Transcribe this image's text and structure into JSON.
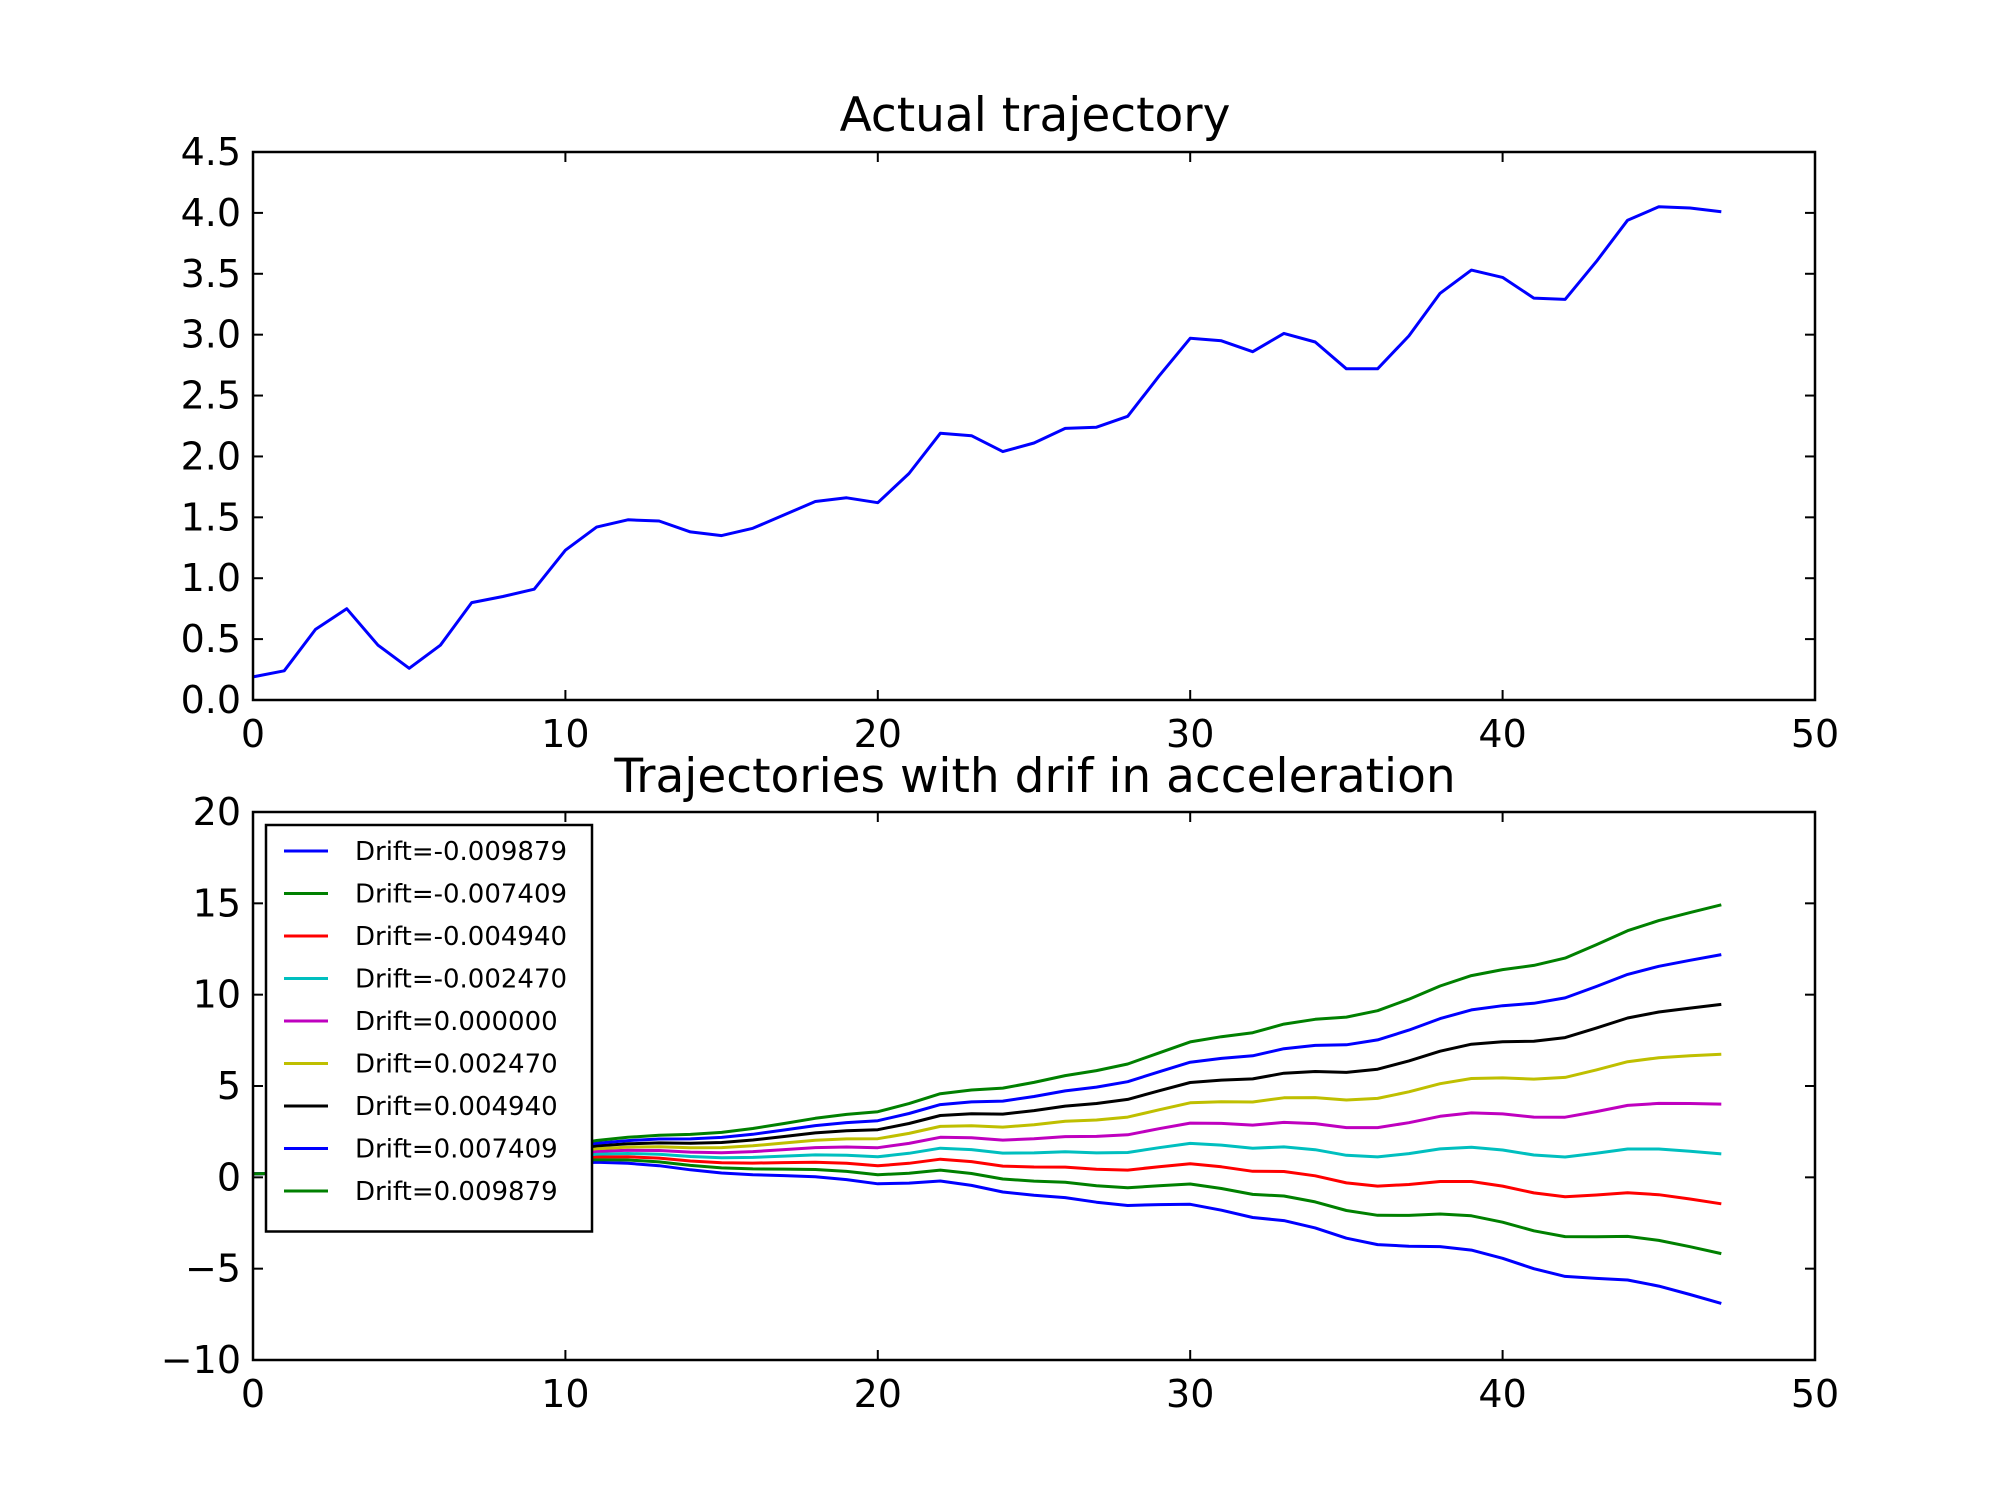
{
  "chart_data": [
    {
      "type": "line",
      "title": "Actual trajectory",
      "xlabel": "",
      "ylabel": "",
      "xlim": [
        0,
        50
      ],
      "ylim": [
        0.0,
        4.5
      ],
      "xticks": [
        0,
        10,
        20,
        30,
        40,
        50
      ],
      "xtick_labels": [
        "0",
        "10",
        "20",
        "30",
        "40",
        "50"
      ],
      "yticks": [
        0.0,
        0.5,
        1.0,
        1.5,
        2.0,
        2.5,
        3.0,
        3.5,
        4.0,
        4.5
      ],
      "ytick_labels": [
        "0.0",
        "0.5",
        "1.0",
        "1.5",
        "2.0",
        "2.5",
        "3.0",
        "3.5",
        "4.0",
        "4.5"
      ],
      "grid": false,
      "x": [
        0,
        1,
        2,
        3,
        4,
        5,
        6,
        7,
        8,
        9,
        10,
        11,
        12,
        13,
        14,
        15,
        16,
        17,
        18,
        19,
        20,
        21,
        22,
        23,
        24,
        25,
        26,
        27,
        28,
        29,
        30,
        31,
        32,
        33,
        34,
        35,
        36,
        37,
        38,
        39,
        40,
        41,
        42,
        43,
        44,
        45,
        46,
        47
      ],
      "series": [
        {
          "color": "#0000ff",
          "values": [
            0.19,
            0.24,
            0.58,
            0.75,
            0.45,
            0.26,
            0.45,
            0.8,
            0.85,
            0.91,
            1.23,
            1.42,
            1.48,
            1.47,
            1.38,
            1.35,
            1.41,
            1.52,
            1.63,
            1.66,
            1.62,
            1.86,
            2.19,
            2.17,
            2.04,
            2.11,
            2.23,
            2.24,
            2.33,
            2.66,
            2.97,
            2.95,
            2.86,
            3.01,
            2.94,
            2.72,
            2.72,
            2.99,
            3.34,
            3.53,
            3.47,
            3.3,
            3.29,
            3.6,
            3.94,
            4.05,
            4.04,
            4.01
          ]
        }
      ]
    },
    {
      "type": "line",
      "title": "Trajectories with drif in acceleration",
      "xlabel": "",
      "ylabel": "",
      "xlim": [
        0,
        50
      ],
      "ylim": [
        -10,
        20
      ],
      "xticks": [
        0,
        10,
        20,
        30,
        40,
        50
      ],
      "xtick_labels": [
        "0",
        "10",
        "20",
        "30",
        "40",
        "50"
      ],
      "yticks": [
        -10,
        -5,
        0,
        5,
        10,
        15,
        20
      ],
      "ytick_labels": [
        "−10",
        "−5",
        "0",
        "5",
        "10",
        "15",
        "20"
      ],
      "grid": false,
      "legend_position": "upper-left",
      "x": [
        0,
        1,
        2,
        3,
        4,
        5,
        6,
        7,
        8,
        9,
        10,
        11,
        12,
        13,
        14,
        15,
        16,
        17,
        18,
        19,
        20,
        21,
        22,
        23,
        24,
        25,
        26,
        27,
        28,
        29,
        30,
        31,
        32,
        33,
        34,
        35,
        36,
        37,
        38,
        39,
        40,
        41,
        42,
        43,
        44,
        45,
        46,
        47
      ],
      "base": [
        0.19,
        0.24,
        0.58,
        0.75,
        0.45,
        0.26,
        0.45,
        0.8,
        0.85,
        0.91,
        1.23,
        1.42,
        1.48,
        1.47,
        1.38,
        1.35,
        1.41,
        1.52,
        1.63,
        1.66,
        1.62,
        1.86,
        2.19,
        2.17,
        2.04,
        2.11,
        2.23,
        2.24,
        2.33,
        2.66,
        2.97,
        2.95,
        2.86,
        3.01,
        2.94,
        2.72,
        2.72,
        2.99,
        3.34,
        3.53,
        3.47,
        3.3,
        3.29,
        3.6,
        3.94,
        4.05,
        4.04,
        4.01
      ],
      "series": [
        {
          "name": "Drift=-0.009879",
          "drift": -0.009879,
          "color": "#0000ff"
        },
        {
          "name": "Drift=-0.007409",
          "drift": -0.007409,
          "color": "#008000"
        },
        {
          "name": "Drift=-0.004940",
          "drift": -0.00494,
          "color": "#ff0000"
        },
        {
          "name": "Drift=-0.002470",
          "drift": -0.00247,
          "color": "#00bfbf"
        },
        {
          "name": "Drift=0.000000",
          "drift": 0.0,
          "color": "#bf00bf"
        },
        {
          "name": "Drift=0.002470",
          "drift": 0.00247,
          "color": "#bfbf00"
        },
        {
          "name": "Drift=0.004940",
          "drift": 0.00494,
          "color": "#000000"
        },
        {
          "name": "Drift=0.007409",
          "drift": 0.007409,
          "color": "#0000ff"
        },
        {
          "name": "Drift=0.009879",
          "drift": 0.009879,
          "color": "#008000"
        }
      ]
    }
  ]
}
